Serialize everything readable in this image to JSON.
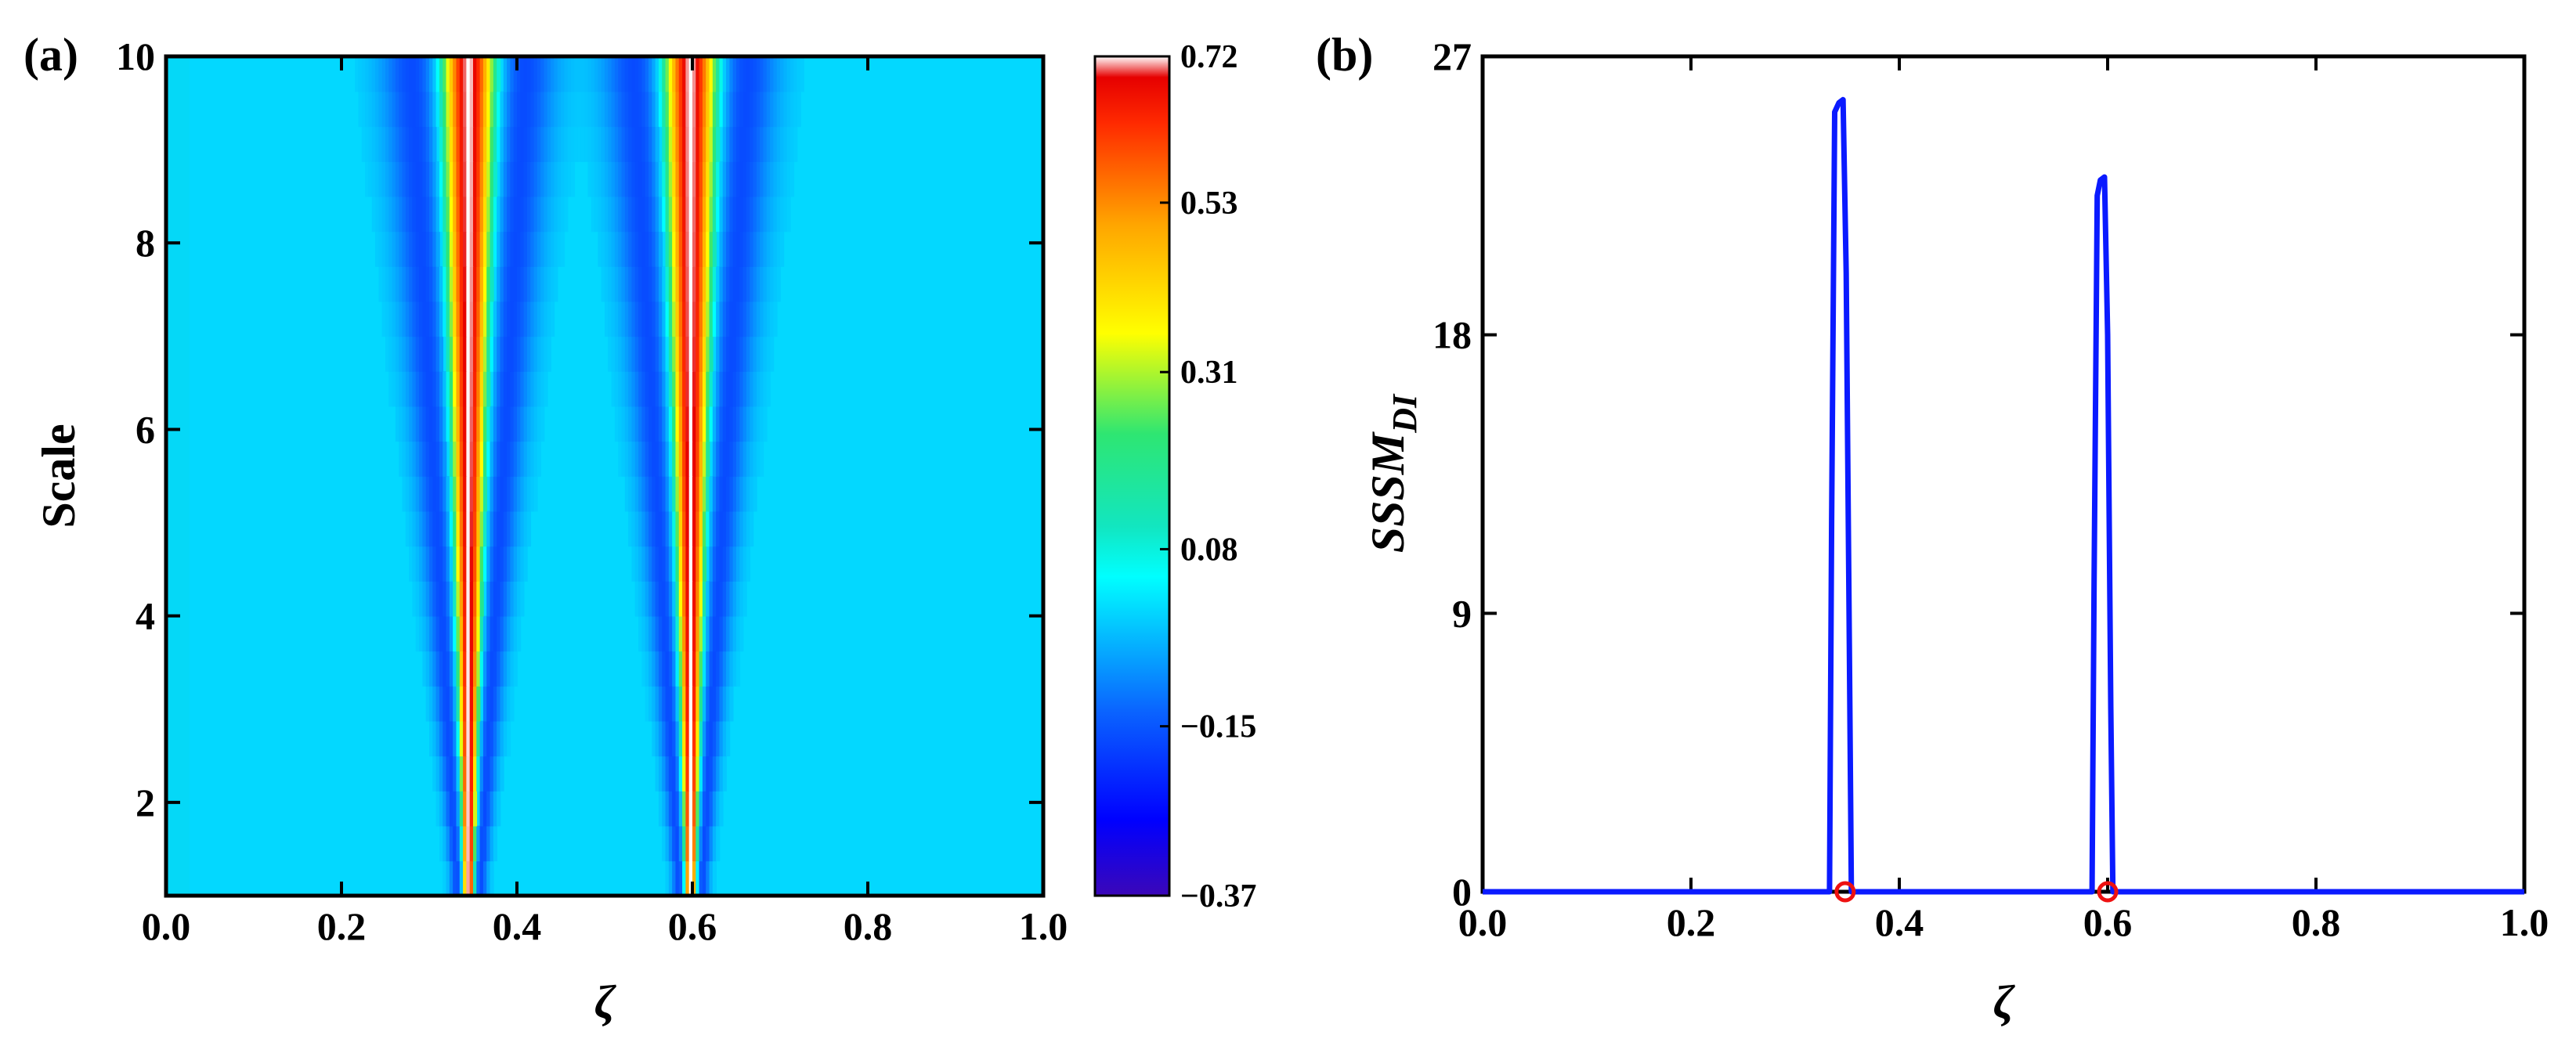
{
  "chart_data": [
    {
      "panel": "(a)",
      "type": "heatmap",
      "xlabel": "ζ",
      "ylabel": "Scale",
      "xlim": [
        0.0,
        1.0
      ],
      "ylim": [
        1,
        10
      ],
      "xticks": [
        "0.0",
        "0.2",
        "0.4",
        "0.6",
        "0.8",
        "1.0"
      ],
      "xtick_values": [
        0.0,
        0.2,
        0.4,
        0.6,
        0.8,
        1.0
      ],
      "yticks": [
        "2",
        "4",
        "6",
        "8",
        "10"
      ],
      "ytick_values": [
        2,
        4,
        6,
        8,
        10
      ],
      "colorbar": {
        "ticks": [
          "0.72",
          "0.53",
          "0.31",
          "0.08",
          "−0.15",
          "−0.37"
        ],
        "tick_values": [
          0.72,
          0.53,
          0.31,
          0.08,
          -0.15,
          -0.37
        ],
        "range": [
          -0.37,
          0.72
        ]
      },
      "background_value": 0.0,
      "ridges": [
        {
          "center": 0.345,
          "peak_value": 0.72,
          "trough_value": -0.37
        },
        {
          "center": 0.598,
          "peak_value": 0.72,
          "trough_value": -0.37
        }
      ]
    },
    {
      "panel": "(b)",
      "type": "line",
      "xlabel": "ζ",
      "ylabel": "SSSM",
      "ylabel_subscript": "DI",
      "xlim": [
        0.0,
        1.0
      ],
      "ylim": [
        0,
        27
      ],
      "xticks": [
        "0.0",
        "0.2",
        "0.4",
        "0.6",
        "0.8",
        "1.0"
      ],
      "xtick_values": [
        0.0,
        0.2,
        0.4,
        0.6,
        0.8,
        1.0
      ],
      "yticks": [
        "0",
        "9",
        "18",
        "27"
      ],
      "ytick_values": [
        0,
        9,
        18,
        27
      ],
      "series": [
        {
          "name": "SSSM_DI",
          "color": "#0a1aff",
          "x": [
            0.0,
            0.333,
            0.335,
            0.338,
            0.342,
            0.346,
            0.349,
            0.352,
            0.354,
            0.585,
            0.587,
            0.59,
            0.593,
            0.597,
            0.6,
            0.603,
            0.605,
            1.0
          ],
          "y": [
            0,
            0,
            12,
            25.2,
            25.5,
            25.6,
            20,
            8,
            0,
            0,
            10,
            22.5,
            23.0,
            23.1,
            18,
            6,
            0,
            0
          ]
        }
      ],
      "markers": [
        {
          "x": 0.348,
          "y": 0,
          "color": "#ee1111"
        },
        {
          "x": 0.6,
          "y": 0,
          "color": "#ee1111"
        }
      ],
      "colors": {
        "line": "#0a1aff",
        "marker": "#ee1111"
      }
    }
  ]
}
